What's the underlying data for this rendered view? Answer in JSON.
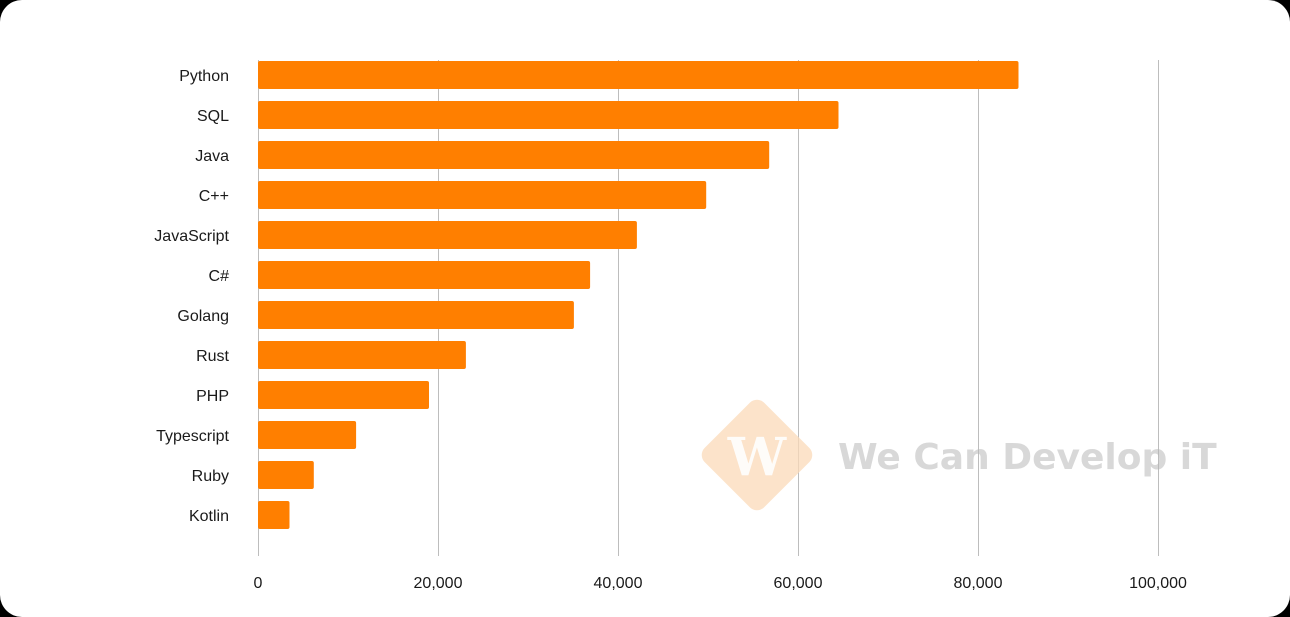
{
  "chart_data": {
    "type": "bar",
    "orientation": "horizontal",
    "categories": [
      "Python",
      "SQL",
      "Java",
      "C++",
      "JavaScript",
      "C#",
      "Golang",
      "Rust",
      "PHP",
      "Typescript",
      "Ruby",
      "Kotlin"
    ],
    "values": [
      84500,
      64500,
      56800,
      49800,
      42100,
      36900,
      35100,
      23100,
      19000,
      10900,
      6200,
      3500
    ],
    "xlim": [
      0,
      100000
    ],
    "xticks": [
      0,
      20000,
      40000,
      60000,
      80000,
      100000
    ],
    "xtick_labels": [
      "0",
      "20,000",
      "40,000",
      "60,000",
      "80,000",
      "100,000"
    ],
    "grid": "vertical",
    "bar_color": "#ff7f00",
    "grid_color": "#bdbdbd"
  },
  "watermark": {
    "text": "We Can Develop iT"
  }
}
